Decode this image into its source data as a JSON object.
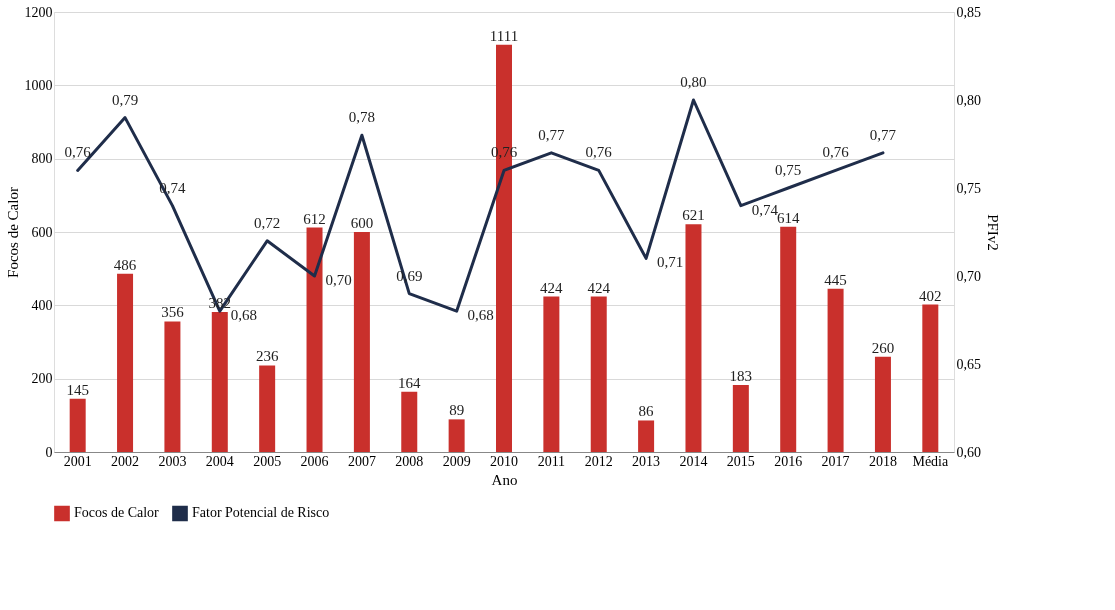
{
  "chart_data": {
    "type": "bar",
    "xlabel": "Ano",
    "ylabel": "Focos de Calor",
    "y2label": "PFIv2",
    "categories": [
      "2001",
      "2002",
      "2003",
      "2004",
      "2005",
      "2006",
      "2007",
      "2008",
      "2009",
      "2010",
      "2011",
      "2012",
      "2013",
      "2014",
      "2015",
      "2016",
      "2017",
      "2018",
      "Média"
    ],
    "series": [
      {
        "name": "Focos de Calor",
        "type": "bar",
        "color": "#c9302c",
        "values": [
          145,
          486,
          356,
          382,
          236,
          612,
          600,
          164,
          89,
          1111,
          424,
          424,
          86,
          621,
          183,
          614,
          445,
          260,
          402
        ]
      },
      {
        "name": "Fator Potencial de Risco",
        "type": "line",
        "axis": "y2",
        "color": "#1f2d4a",
        "values": [
          0.76,
          0.79,
          0.74,
          0.68,
          0.72,
          0.7,
          0.78,
          0.69,
          0.68,
          0.76,
          0.77,
          0.76,
          0.71,
          0.8,
          0.74,
          0.75,
          0.76,
          0.77,
          null
        ],
        "value_labels": [
          "0,76",
          "0,79",
          "0,74",
          "0,68",
          "0,72",
          "0,70",
          "0,78",
          "0,69",
          "0,68",
          "0,76",
          "0,77",
          "0,76",
          "0,71",
          "0,80",
          "0,74",
          "0,75",
          "0,76",
          "0,77",
          null
        ]
      }
    ],
    "data_labels": true,
    "ylim": [
      0,
      1200
    ],
    "yticks": [
      0,
      200,
      400,
      600,
      800,
      1000,
      1200
    ],
    "y2lim": [
      0.6,
      0.85
    ],
    "y2ticks": [
      {
        "value": 0.6,
        "label": "0,60"
      },
      {
        "value": 0.65,
        "label": "0,65"
      },
      {
        "value": 0.7,
        "label": "0,70"
      },
      {
        "value": 0.75,
        "label": "0,75"
      },
      {
        "value": 0.8,
        "label": "0,80"
      },
      {
        "value": 0.85,
        "label": "0,85"
      }
    ],
    "grid": "y",
    "legend": "bottom",
    "line_style": "solid",
    "marker": "none"
  }
}
